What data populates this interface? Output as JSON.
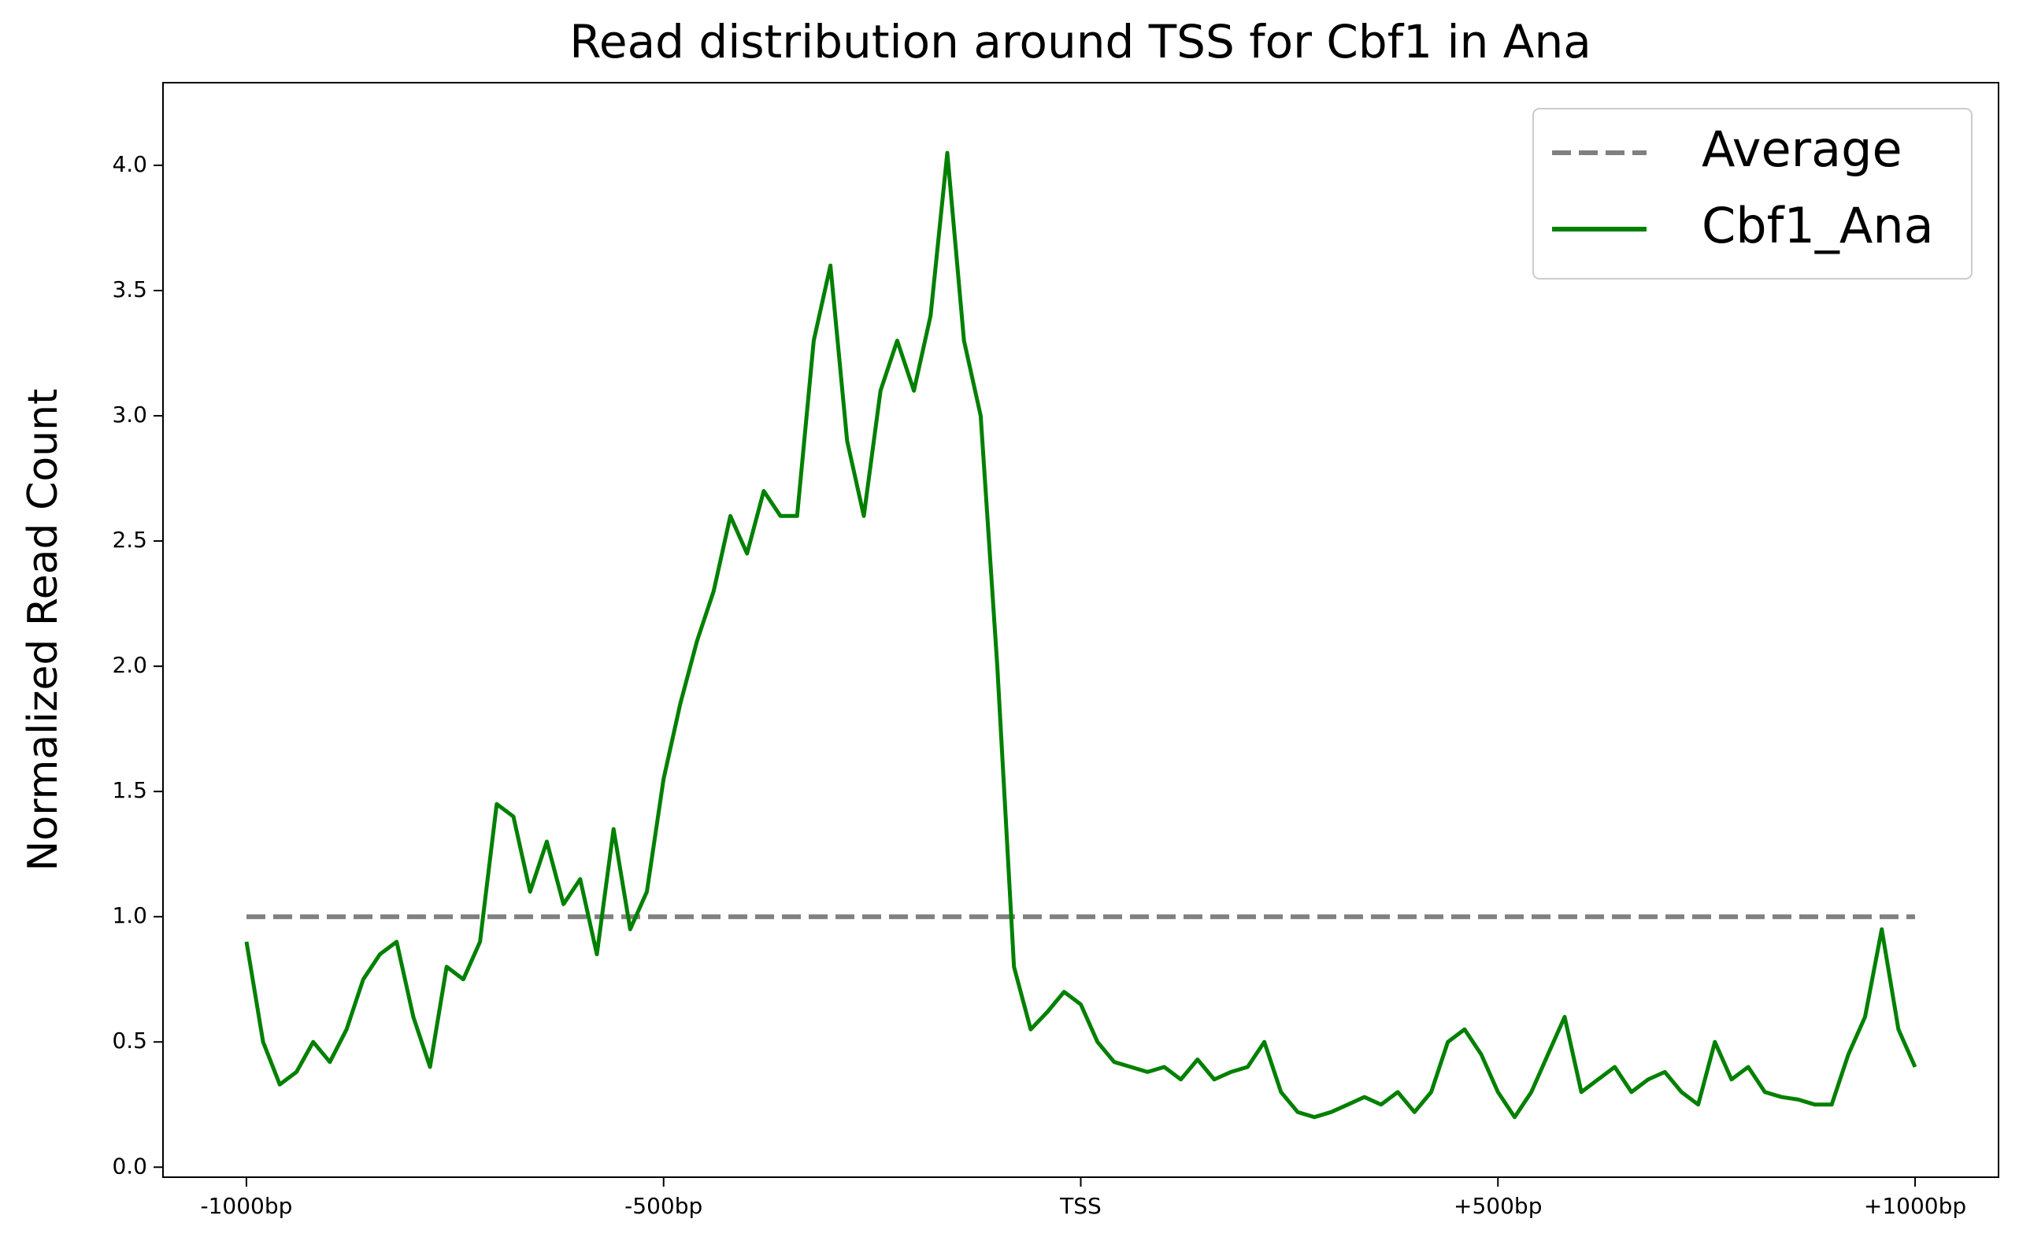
{
  "chart_data": {
    "type": "line",
    "title": "Read distribution around TSS for Cbf1 in Ana",
    "y_label": "Normalized Read Count",
    "xlim": [
      -1100,
      1100
    ],
    "ylim": [
      -0.04,
      4.33
    ],
    "xticks": [
      {
        "value": -1000,
        "label": "-1000bp"
      },
      {
        "value": -500,
        "label": "-500bp"
      },
      {
        "value": 0,
        "label": "TSS"
      },
      {
        "value": 500,
        "label": "+500bp"
      },
      {
        "value": 1000,
        "label": "+1000bp"
      }
    ],
    "yticks": [
      {
        "value": 0,
        "label": "0.0"
      },
      {
        "value": 0.5,
        "label": "0.5"
      },
      {
        "value": 1,
        "label": "1.0"
      },
      {
        "value": 1.5,
        "label": "1.5"
      },
      {
        "value": 2,
        "label": "2.0"
      },
      {
        "value": 2.5,
        "label": "2.5"
      },
      {
        "value": 3,
        "label": "3.0"
      },
      {
        "value": 3.5,
        "label": "3.5"
      },
      {
        "value": 4,
        "label": "4.0"
      }
    ],
    "legend": "upper right",
    "series": [
      {
        "name": "Average",
        "color": "#808080",
        "dashed": true,
        "x": [
          -1000,
          1000
        ],
        "values": [
          1,
          1
        ]
      },
      {
        "name": "Cbf1_Ana",
        "color": "#008000",
        "dashed": false,
        "x": [
          -1000,
          -980,
          -960,
          -940,
          -920,
          -900,
          -880,
          -860,
          -840,
          -820,
          -800,
          -780,
          -760,
          -740,
          -720,
          -700,
          -680,
          -660,
          -640,
          -620,
          -600,
          -580,
          -560,
          -540,
          -520,
          -500,
          -480,
          -460,
          -440,
          -420,
          -400,
          -380,
          -360,
          -340,
          -320,
          -300,
          -280,
          -260,
          -240,
          -220,
          -200,
          -180,
          -160,
          -140,
          -120,
          -100,
          -80,
          -60,
          -40,
          -20,
          0,
          20,
          40,
          60,
          80,
          100,
          120,
          140,
          160,
          180,
          200,
          220,
          240,
          260,
          280,
          300,
          320,
          340,
          360,
          380,
          400,
          420,
          440,
          460,
          480,
          500,
          520,
          540,
          560,
          580,
          600,
          620,
          640,
          660,
          680,
          700,
          720,
          740,
          760,
          780,
          800,
          820,
          840,
          860,
          880,
          900,
          920,
          940,
          960,
          980,
          1000
        ],
        "values": [
          0.9,
          0.5,
          0.33,
          0.38,
          0.5,
          0.42,
          0.55,
          0.75,
          0.85,
          0.9,
          0.6,
          0.4,
          0.8,
          0.75,
          0.9,
          1.45,
          1.4,
          1.1,
          1.3,
          1.05,
          1.15,
          0.85,
          1.35,
          0.95,
          1.1,
          1.55,
          1.85,
          2.1,
          2.3,
          2.6,
          2.45,
          2.7,
          2.6,
          2.6,
          3.3,
          3.6,
          2.9,
          2.6,
          3.1,
          3.3,
          3.1,
          3.4,
          4.05,
          3.3,
          3.0,
          2.0,
          0.8,
          0.55,
          0.62,
          0.7,
          0.65,
          0.5,
          0.42,
          0.4,
          0.38,
          0.4,
          0.35,
          0.43,
          0.35,
          0.38,
          0.4,
          0.5,
          0.3,
          0.22,
          0.2,
          0.22,
          0.25,
          0.28,
          0.25,
          0.3,
          0.22,
          0.3,
          0.5,
          0.55,
          0.45,
          0.3,
          0.2,
          0.3,
          0.45,
          0.6,
          0.3,
          0.35,
          0.4,
          0.3,
          0.35,
          0.38,
          0.3,
          0.25,
          0.5,
          0.35,
          0.4,
          0.3,
          0.28,
          0.27,
          0.25,
          0.25,
          0.45,
          0.6,
          0.95,
          0.55,
          0.4
        ]
      }
    ]
  }
}
